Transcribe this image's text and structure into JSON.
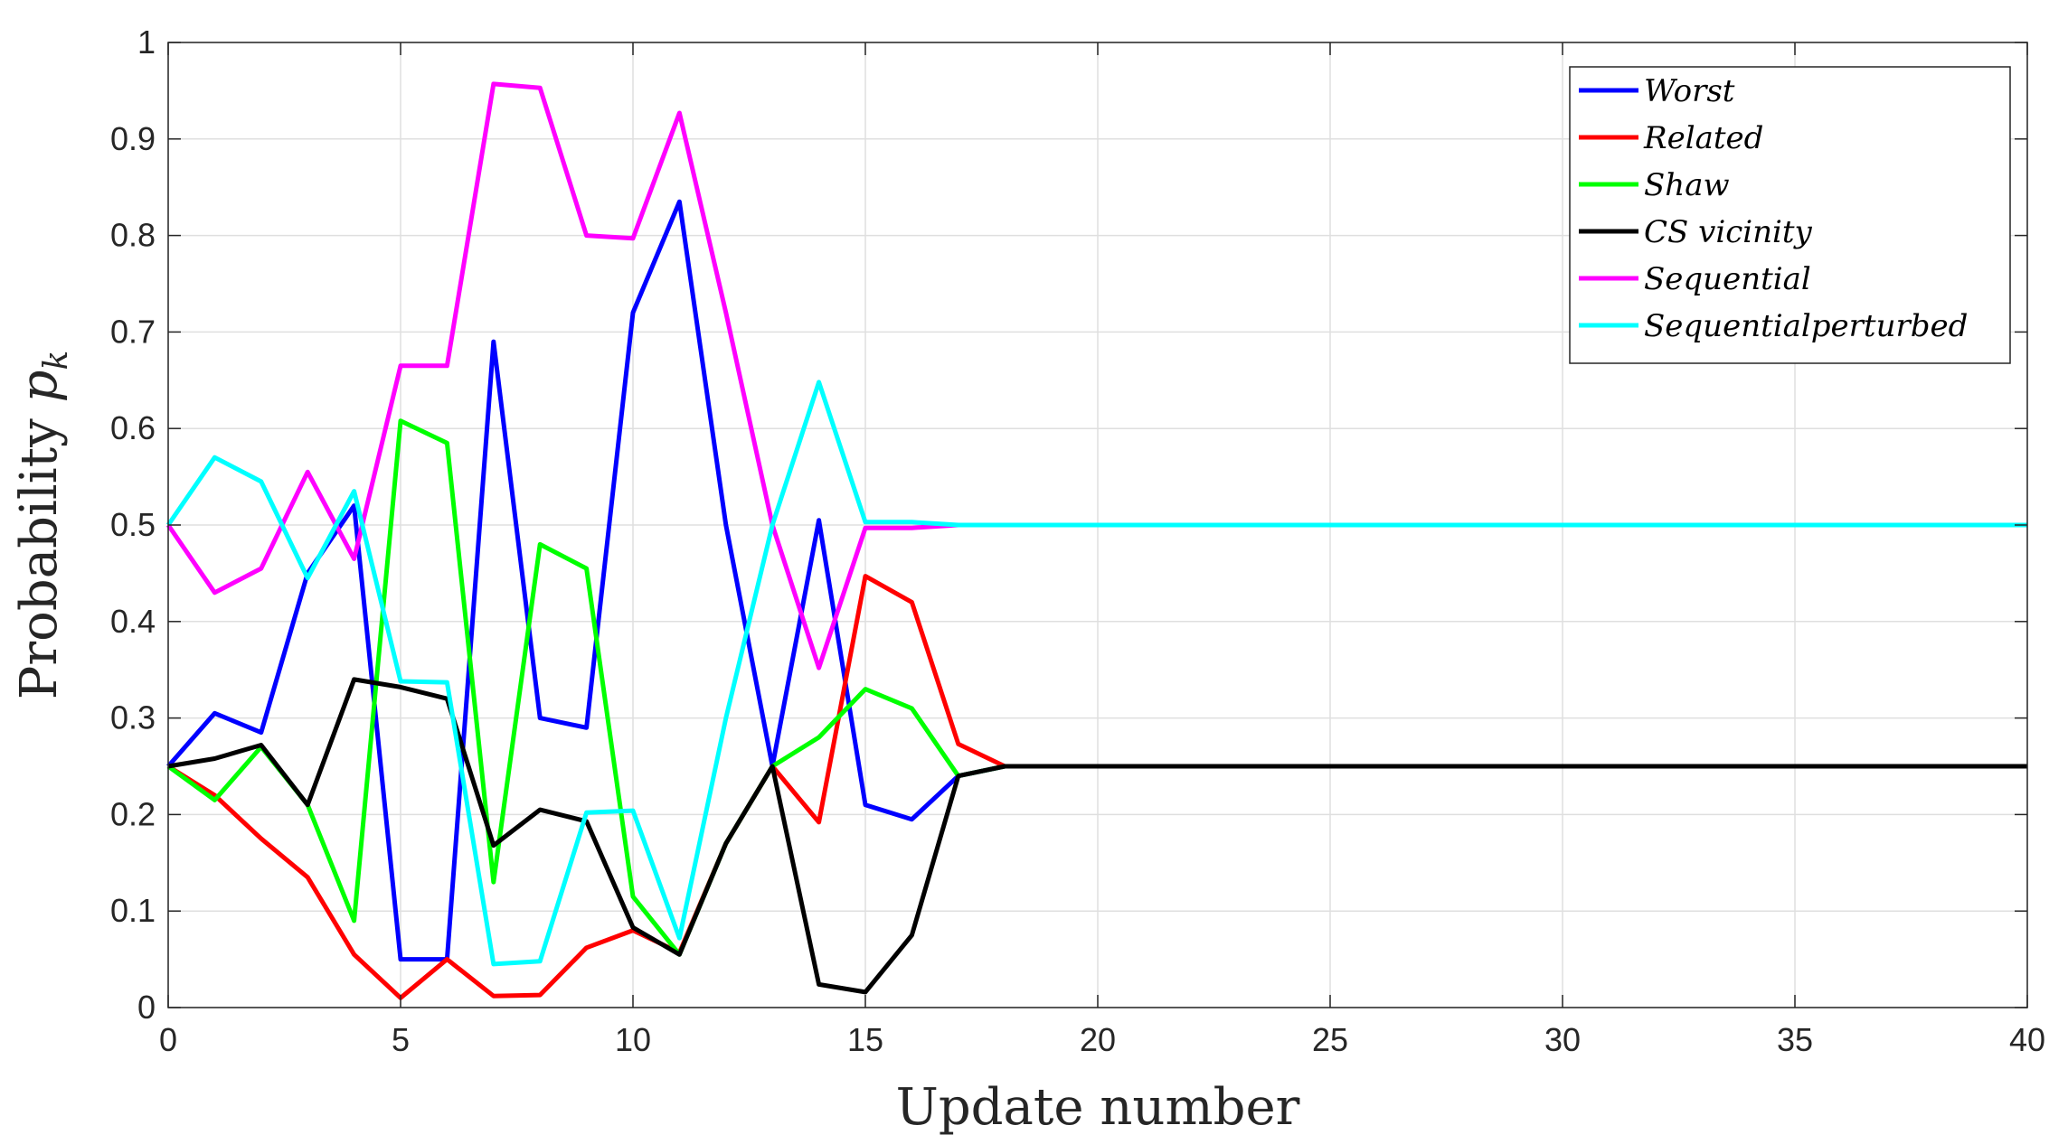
{
  "chart_data": {
    "type": "line",
    "title": "",
    "xlabel": "Update number",
    "ylabel": "Probability p_k",
    "ylabel_main": "Probability ",
    "ylabel_symbol": "p",
    "ylabel_subscript": "k",
    "xlim": [
      0,
      40
    ],
    "ylim": [
      0,
      1
    ],
    "xticks": [
      0,
      5,
      10,
      15,
      20,
      25,
      30,
      35,
      40
    ],
    "yticks": [
      0,
      0.1,
      0.2,
      0.3,
      0.4,
      0.5,
      0.6,
      0.7,
      0.8,
      0.9,
      1
    ],
    "ytick_labels": [
      "0",
      "0.1",
      "0.2",
      "0.3",
      "0.4",
      "0.5",
      "0.6",
      "0.7",
      "0.8",
      "0.9",
      "1"
    ],
    "grid": true,
    "legend_position": "top-right",
    "series": [
      {
        "name": "Worst",
        "color": "#0000ff",
        "points": [
          [
            0,
            0.25
          ],
          [
            1,
            0.305
          ],
          [
            2,
            0.285
          ],
          [
            3,
            0.45
          ],
          [
            4,
            0.52
          ],
          [
            5,
            0.05
          ],
          [
            6,
            0.05
          ],
          [
            7,
            0.69
          ],
          [
            8,
            0.3
          ],
          [
            9,
            0.29
          ],
          [
            10,
            0.72
          ],
          [
            11,
            0.835
          ],
          [
            12,
            0.5
          ],
          [
            13,
            0.25
          ],
          [
            14,
            0.505
          ],
          [
            15,
            0.21
          ],
          [
            16,
            0.195
          ],
          [
            17,
            0.24
          ],
          [
            18,
            0.25
          ],
          [
            40,
            0.25
          ]
        ]
      },
      {
        "name": "Related",
        "color": "#ff0000",
        "points": [
          [
            0,
            0.25
          ],
          [
            1,
            0.22
          ],
          [
            2,
            0.175
          ],
          [
            3,
            0.135
          ],
          [
            4,
            0.055
          ],
          [
            5,
            0.01
          ],
          [
            6,
            0.05
          ],
          [
            7,
            0.012
          ],
          [
            8,
            0.013
          ],
          [
            9,
            0.062
          ],
          [
            10,
            0.08
          ],
          [
            11,
            0.057
          ],
          [
            12,
            0.17
          ],
          [
            13,
            0.25
          ],
          [
            14,
            0.192
          ],
          [
            15,
            0.447
          ],
          [
            16,
            0.42
          ],
          [
            17,
            0.273
          ],
          [
            18,
            0.25
          ],
          [
            40,
            0.25
          ]
        ]
      },
      {
        "name": "Shaw",
        "color": "#00ff00",
        "points": [
          [
            0,
            0.25
          ],
          [
            1,
            0.215
          ],
          [
            2,
            0.27
          ],
          [
            3,
            0.21
          ],
          [
            4,
            0.09
          ],
          [
            5,
            0.608
          ],
          [
            6,
            0.585
          ],
          [
            7,
            0.13
          ],
          [
            8,
            0.48
          ],
          [
            9,
            0.455
          ],
          [
            10,
            0.115
          ],
          [
            11,
            0.055
          ],
          [
            12,
            0.17
          ],
          [
            13,
            0.25
          ],
          [
            14,
            0.28
          ],
          [
            15,
            0.33
          ],
          [
            16,
            0.31
          ],
          [
            17,
            0.24
          ],
          [
            18,
            0.25
          ],
          [
            40,
            0.25
          ]
        ]
      },
      {
        "name": "CS vicinity",
        "color": "#000000",
        "points": [
          [
            0,
            0.25
          ],
          [
            1,
            0.258
          ],
          [
            2,
            0.272
          ],
          [
            3,
            0.21
          ],
          [
            4,
            0.34
          ],
          [
            5,
            0.332
          ],
          [
            6,
            0.32
          ],
          [
            7,
            0.168
          ],
          [
            8,
            0.205
          ],
          [
            9,
            0.193
          ],
          [
            10,
            0.083
          ],
          [
            11,
            0.055
          ],
          [
            12,
            0.17
          ],
          [
            13,
            0.25
          ],
          [
            14,
            0.024
          ],
          [
            15,
            0.016
          ],
          [
            16,
            0.075
          ],
          [
            17,
            0.24
          ],
          [
            18,
            0.25
          ],
          [
            40,
            0.25
          ]
        ]
      },
      {
        "name": "Sequential",
        "color": "#ff00ff",
        "points": [
          [
            0,
            0.5
          ],
          [
            1,
            0.43
          ],
          [
            2,
            0.455
          ],
          [
            3,
            0.555
          ],
          [
            4,
            0.465
          ],
          [
            5,
            0.665
          ],
          [
            6,
            0.665
          ],
          [
            7,
            0.957
          ],
          [
            8,
            0.953
          ],
          [
            9,
            0.8
          ],
          [
            10,
            0.797
          ],
          [
            11,
            0.927
          ],
          [
            12,
            0.72
          ],
          [
            13,
            0.5
          ],
          [
            14,
            0.352
          ],
          [
            15,
            0.497
          ],
          [
            16,
            0.497
          ],
          [
            17,
            0.5
          ],
          [
            40,
            0.5
          ]
        ]
      },
      {
        "name": "Sequentialperturbed",
        "color": "#00ffff",
        "points": [
          [
            0,
            0.5
          ],
          [
            1,
            0.57
          ],
          [
            2,
            0.545
          ],
          [
            3,
            0.445
          ],
          [
            4,
            0.535
          ],
          [
            5,
            0.338
          ],
          [
            6,
            0.337
          ],
          [
            7,
            0.045
          ],
          [
            8,
            0.048
          ],
          [
            9,
            0.202
          ],
          [
            10,
            0.204
          ],
          [
            11,
            0.072
          ],
          [
            12,
            0.3
          ],
          [
            13,
            0.5
          ],
          [
            14,
            0.648
          ],
          [
            15,
            0.503
          ],
          [
            16,
            0.503
          ],
          [
            17,
            0.5
          ],
          [
            40,
            0.5
          ]
        ]
      }
    ]
  }
}
